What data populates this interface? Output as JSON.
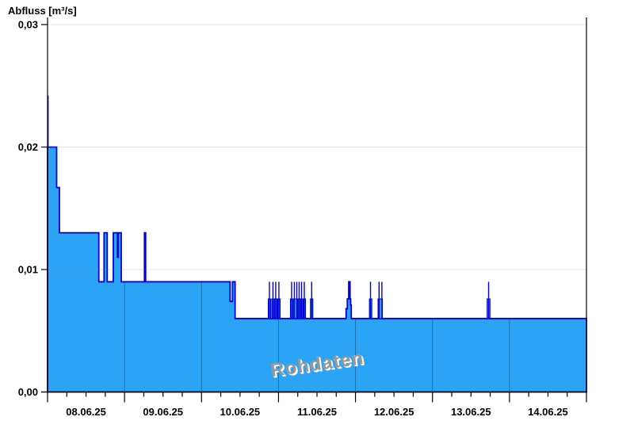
{
  "header": {
    "title": "Abfluss [m³/s]"
  },
  "watermark": {
    "label": "Rohdaten"
  },
  "chart_data": {
    "type": "area",
    "title": "Abfluss [m³/s]",
    "ylabel": "Abfluss [m³/s]",
    "unit": "m³/s",
    "grid": "horizontal-only",
    "legend": "none",
    "watermark_text": "Rohdaten",
    "x_day_labels": [
      "08.06.25",
      "09.06.25",
      "10.06.25",
      "11.06.25",
      "12.06.25",
      "13.06.25",
      "14.06.25"
    ],
    "y_ticks": [
      {
        "v": 0.0,
        "label": "0,00"
      },
      {
        "v": 0.01,
        "label": "0,01"
      },
      {
        "v": 0.02,
        "label": "0,02"
      },
      {
        "v": 0.03,
        "label": "0,03"
      }
    ],
    "ylim": [
      0,
      0.031
    ],
    "series": {
      "name": "Abfluss Rohdaten",
      "base_steps": [
        [
          0.0,
          0.02
        ],
        [
          0.118,
          0.0167
        ],
        [
          0.154,
          0.013
        ],
        [
          0.666,
          0.009
        ],
        [
          0.734,
          0.013
        ],
        [
          0.775,
          0.009
        ],
        [
          0.854,
          0.013
        ],
        [
          0.908,
          0.011
        ],
        [
          0.919,
          0.013
        ],
        [
          0.957,
          0.009
        ],
        [
          1.259,
          0.013
        ],
        [
          1.274,
          0.009
        ],
        [
          2.371,
          0.0074
        ],
        [
          2.402,
          0.009
        ],
        [
          2.436,
          0.006
        ],
        [
          3.878,
          0.0068
        ],
        [
          3.894,
          0.0076
        ],
        [
          3.912,
          0.009
        ],
        [
          3.929,
          0.0076
        ],
        [
          3.937,
          0.0071
        ],
        [
          3.945,
          0.006
        ],
        [
          7.0,
          0.006
        ]
      ],
      "initial_spike": {
        "x": 0.006,
        "v": 0.0242,
        "v0": 0.02
      },
      "spike_value": 0.009,
      "spike_base": 0.006,
      "spikes": [
        2.882,
        2.928,
        2.964,
        3.005,
        3.17,
        3.206,
        3.237,
        3.268,
        3.299,
        3.335,
        3.431,
        4.195,
        4.306,
        4.343,
        5.729
      ],
      "column_value": 0.0076,
      "columns": [
        [
          2.867,
          2.898
        ],
        [
          2.913,
          2.944
        ],
        [
          2.949,
          2.98
        ],
        [
          2.99,
          3.021
        ],
        [
          3.155,
          3.186
        ],
        [
          3.191,
          3.243
        ],
        [
          3.253,
          3.284
        ],
        [
          3.289,
          3.315
        ],
        [
          3.325,
          3.351
        ],
        [
          3.415,
          3.446
        ],
        [
          4.181,
          4.212
        ],
        [
          4.293,
          4.349
        ],
        [
          5.71,
          5.747
        ]
      ]
    },
    "colors": {
      "fill": "#2BA4F6",
      "line": "#0000DC",
      "day_line": "#1D6FA8",
      "grid": "#828282",
      "axis": "#000000",
      "text": "#000000",
      "watermark": "#979797"
    }
  }
}
